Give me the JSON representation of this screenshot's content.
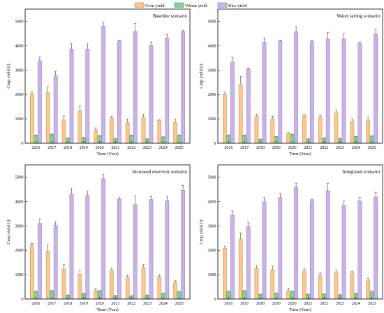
{
  "legend": {
    "position": "top-center",
    "items": [
      {
        "label": "Corn yield",
        "color": "#f8c890",
        "stroke": "#c8884a"
      },
      {
        "label": "Wheat yield",
        "color": "#7fd49a",
        "stroke": "#3f9a5c"
      },
      {
        "label": "Rice yield",
        "color": "#c8b4e6",
        "stroke": "#8a74b4"
      }
    ]
  },
  "chart_data": [
    {
      "type": "bar",
      "title": "Baseline scenario",
      "xlabel": "Time (Year)",
      "ylabel": "Crop yield (t)",
      "ylim": [
        0,
        5500
      ],
      "yticks": [
        0,
        1000,
        2000,
        3000,
        4000,
        5000
      ],
      "categories": [
        "2016",
        "2017",
        "2018",
        "2019",
        "2020",
        "2021",
        "2022",
        "2023",
        "2024",
        "2025"
      ],
      "series": [
        {
          "name": "Corn yield",
          "values": [
            2030,
            2070,
            960,
            1340,
            540,
            1040,
            850,
            1070,
            940,
            850
          ],
          "errors": [
            100,
            260,
            160,
            180,
            90,
            70,
            150,
            120,
            20,
            140
          ]
        },
        {
          "name": "Wheat yield",
          "values": [
            320,
            350,
            200,
            220,
            300,
            180,
            320,
            170,
            250,
            320
          ],
          "errors": [
            20,
            20,
            20,
            20,
            20,
            20,
            20,
            20,
            20,
            20
          ]
        },
        {
          "name": "Rice yield",
          "values": [
            3380,
            2770,
            3860,
            3860,
            4800,
            4190,
            4590,
            4030,
            4320,
            4580
          ],
          "errors": [
            160,
            180,
            230,
            210,
            160,
            40,
            320,
            120,
            130,
            50
          ]
        }
      ]
    },
    {
      "type": "bar",
      "title": "Water saving scenario",
      "xlabel": "Time (Year)",
      "ylabel": "Crop yield (t)",
      "ylim": [
        0,
        5500
      ],
      "yticks": [
        0,
        1000,
        2000,
        3000,
        4000,
        5000
      ],
      "categories": [
        "2016",
        "2017",
        "2018",
        "2019",
        "2020",
        "2021",
        "2022",
        "2023",
        "2024",
        "2025"
      ],
      "series": [
        {
          "name": "Corn yield",
          "values": [
            2010,
            2420,
            1100,
            1000,
            400,
            1130,
            1070,
            1240,
            900,
            920
          ],
          "errors": [
            90,
            310,
            90,
            110,
            30,
            30,
            70,
            120,
            100,
            140
          ]
        },
        {
          "name": "Wheat yield",
          "values": [
            320,
            320,
            150,
            260,
            350,
            160,
            200,
            180,
            260,
            290
          ],
          "errors": [
            20,
            20,
            20,
            20,
            20,
            20,
            20,
            20,
            20,
            20
          ]
        },
        {
          "name": "Rice yield",
          "values": [
            3330,
            3050,
            4140,
            4190,
            4560,
            4160,
            4270,
            4280,
            4110,
            4470
          ],
          "errors": [
            180,
            30,
            180,
            40,
            200,
            60,
            280,
            210,
            40,
            180
          ]
        }
      ]
    },
    {
      "type": "bar",
      "title": "Increased reservoir scenario",
      "xlabel": "Time (Year)",
      "ylabel": "Crop yield (t)",
      "ylim": [
        0,
        5500
      ],
      "yticks": [
        0,
        1000,
        2000,
        3000,
        4000,
        5000
      ],
      "categories": [
        "2016",
        "2017",
        "2018",
        "2019",
        "2020",
        "2021",
        "2022",
        "2023",
        "2024",
        "2025"
      ],
      "series": [
        {
          "name": "Corn yield",
          "values": [
            2190,
            1960,
            1230,
            1020,
            350,
            1190,
            900,
            1300,
            920,
            680
          ],
          "errors": [
            90,
            270,
            180,
            170,
            90,
            80,
            80,
            110,
            80,
            70
          ]
        },
        {
          "name": "Wheat yield",
          "values": [
            310,
            330,
            150,
            220,
            330,
            130,
            120,
            150,
            230,
            300
          ],
          "errors": [
            20,
            20,
            20,
            20,
            20,
            20,
            20,
            20,
            20,
            20
          ]
        },
        {
          "name": "Rice yield",
          "values": [
            3100,
            3020,
            4300,
            4250,
            4930,
            4090,
            3870,
            4080,
            4030,
            4460
          ],
          "errors": [
            190,
            140,
            240,
            170,
            180,
            70,
            360,
            120,
            180,
            200
          ]
        }
      ]
    },
    {
      "type": "bar",
      "title": "Integrated scenario",
      "xlabel": "Time (Year)",
      "ylabel": "Crop yield (t)",
      "ylim": [
        0,
        5500
      ],
      "yticks": [
        0,
        1000,
        2000,
        3000,
        4000,
        5000
      ],
      "categories": [
        "2016",
        "2017",
        "2018",
        "2019",
        "2020",
        "2021",
        "2022",
        "2023",
        "2024",
        "2025"
      ],
      "series": [
        {
          "name": "Corn yield",
          "values": [
            2070,
            2460,
            1250,
            1200,
            350,
            1160,
            1000,
            1090,
            1060,
            740
          ],
          "errors": [
            90,
            250,
            130,
            150,
            100,
            80,
            100,
            100,
            70,
            100
          ]
        },
        {
          "name": "Wheat yield",
          "values": [
            300,
            330,
            180,
            230,
            300,
            180,
            200,
            160,
            220,
            300
          ],
          "errors": [
            20,
            20,
            20,
            20,
            20,
            20,
            20,
            20,
            20,
            20
          ]
        },
        {
          "name": "Rice yield",
          "values": [
            3440,
            2980,
            3990,
            4160,
            4590,
            4030,
            4440,
            3840,
            4010,
            4180
          ],
          "errors": [
            170,
            150,
            170,
            170,
            160,
            60,
            300,
            180,
            160,
            200
          ]
        }
      ]
    }
  ]
}
